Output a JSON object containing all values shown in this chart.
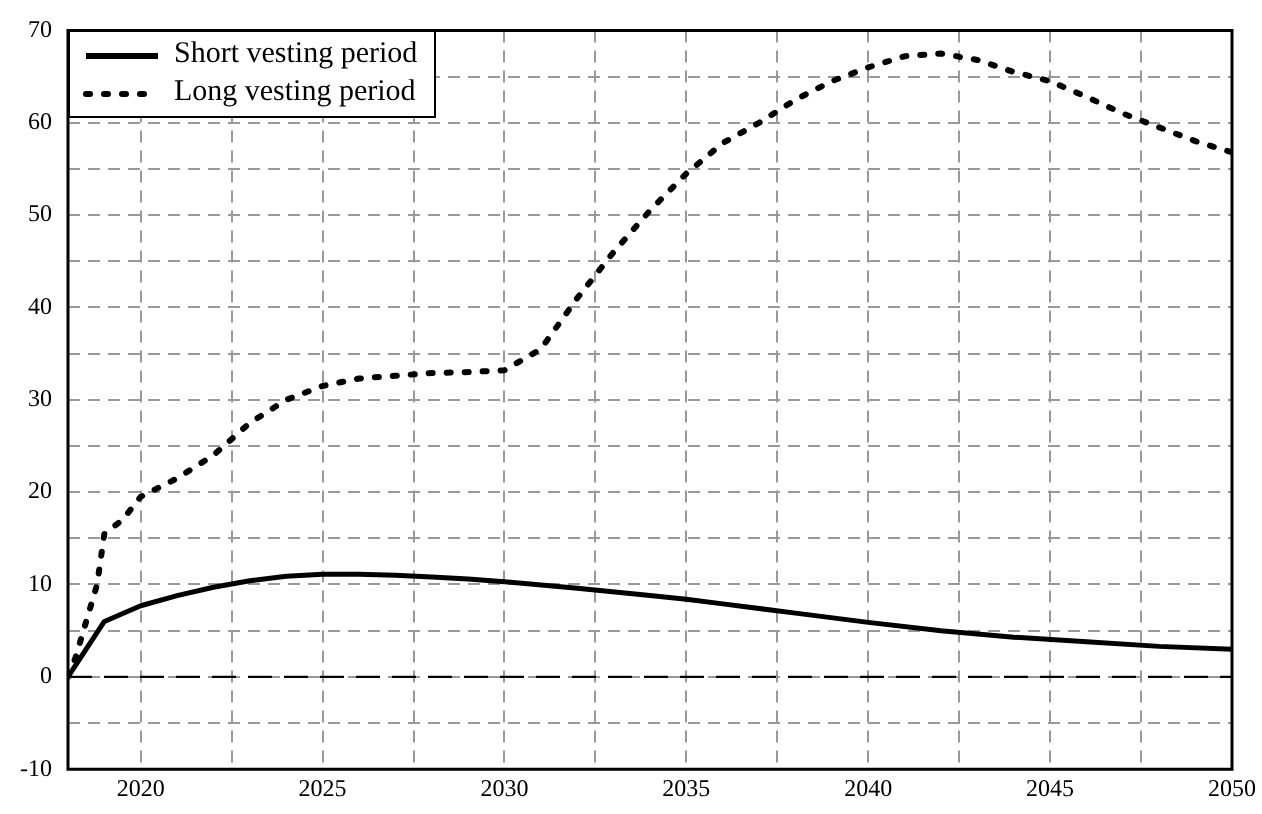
{
  "chart_data": {
    "type": "line",
    "xlim": [
      2018,
      2050
    ],
    "ylim": [
      -10,
      70
    ],
    "xticks": [
      2020,
      {
        "value": 2022.5,
        "label": null
      },
      2025,
      {
        "value": 2027.5,
        "label": null
      },
      2030,
      {
        "value": 2032.5,
        "label": null
      },
      2035,
      {
        "value": 2037.5,
        "label": null
      },
      2040,
      {
        "value": 2042.5,
        "label": null
      },
      2045,
      {
        "value": 2047.5,
        "label": null
      },
      2050
    ],
    "yticks": [
      -10,
      {
        "value": -5,
        "label": null
      },
      0,
      {
        "value": 5,
        "label": null
      },
      10,
      {
        "value": 15,
        "label": null
      },
      20,
      {
        "value": 25,
        "label": null
      },
      30,
      {
        "value": 35,
        "label": null
      },
      40,
      {
        "value": 45,
        "label": null
      },
      50,
      {
        "value": 55,
        "label": null
      },
      60,
      {
        "value": 65,
        "label": null
      },
      70
    ],
    "grid": true,
    "legend": "top left",
    "marker": "none",
    "ref_lines": [
      {
        "axis": "y",
        "value": 0,
        "label": null,
        "color": "#000000",
        "line_style": "dashed"
      }
    ],
    "series": [
      {
        "name": "Short vesting period",
        "color": "#000000",
        "line_style": "solid",
        "x": [
          2018,
          2019,
          2020,
          2021,
          2022,
          2023,
          2024,
          2025,
          2026,
          2027,
          2028,
          2029,
          2030,
          2032,
          2034,
          2035,
          2036,
          2038,
          2040,
          2042,
          2044,
          2046,
          2048,
          2050
        ],
        "values": [
          0,
          6,
          7.7,
          8.8,
          9.7,
          10.4,
          10.9,
          11.1,
          11.1,
          11,
          10.8,
          10.6,
          10.3,
          9.6,
          8.8,
          8.4,
          7.9,
          6.9,
          5.9,
          5,
          4.3,
          3.8,
          3.3,
          3
        ]
      },
      {
        "name": "Long vesting period",
        "color": "#000000",
        "line_style": "dotted",
        "x": [
          2018,
          2018.2,
          2018.5,
          2018.8,
          2019,
          2019.5,
          2020,
          2021,
          2022,
          2023,
          2024,
          2025,
          2026,
          2027,
          2028,
          2029,
          2030,
          2031,
          2032,
          2033,
          2034,
          2035,
          2036,
          2037,
          2038,
          2039,
          2040,
          2041,
          2042,
          2043,
          2044,
          2045,
          2046,
          2047,
          2048,
          2049,
          2050
        ],
        "values": [
          0,
          2,
          6,
          10,
          15.5,
          17,
          19.5,
          21.5,
          24,
          27.5,
          30,
          31.5,
          32.3,
          32.6,
          32.9,
          33,
          33.2,
          35.5,
          41,
          46,
          50.5,
          54.5,
          57.8,
          60,
          62.5,
          64.5,
          66,
          67.2,
          67.5,
          66.8,
          65.5,
          64.5,
          62.8,
          61,
          59.5,
          58,
          56.8
        ]
      }
    ]
  }
}
